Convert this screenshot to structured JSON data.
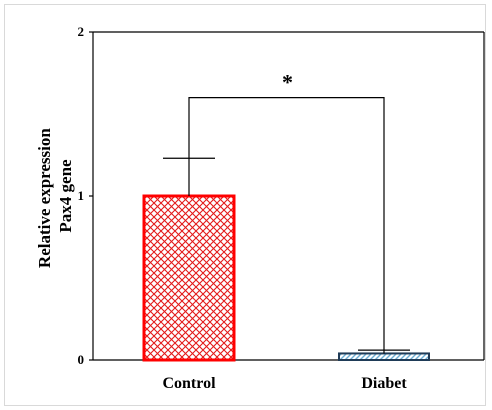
{
  "chart_data": {
    "type": "bar",
    "categories": [
      "Control",
      "Diabet"
    ],
    "values": [
      1.0,
      0.04
    ],
    "error_upper": [
      1.23,
      0.06
    ],
    "ylabel_lines": [
      "Relative expression",
      "Pax4  gene"
    ],
    "xlabel": "",
    "ylim": [
      0,
      2
    ],
    "yticks": [
      "0",
      "1",
      "2"
    ],
    "grid": false,
    "legend": "none",
    "significance": {
      "label": "*",
      "bracket_y": 1.6,
      "between": [
        0,
        1
      ]
    },
    "bar_styles": [
      {
        "fill_pattern": "crosshatch",
        "edge_color": "#ff0000",
        "hatch_color": "#e31a1a"
      },
      {
        "fill_pattern": "diagonal-hatch",
        "edge_color": "#1f3b57",
        "hatch_color": "#6aaed6"
      }
    ]
  }
}
